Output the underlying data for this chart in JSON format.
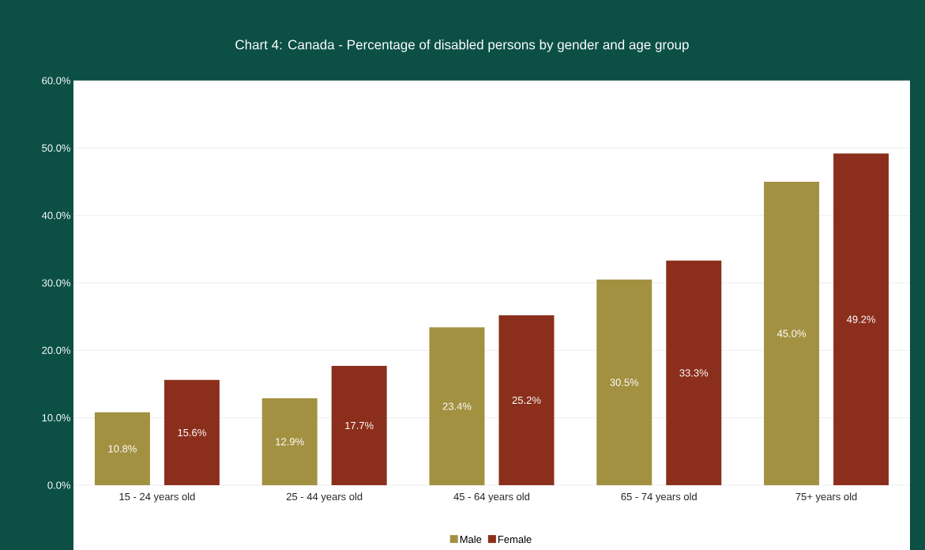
{
  "chart_data": {
    "type": "bar",
    "title": "Chart 4: Canada - Percentage of disabled persons by gender and age group",
    "categories": [
      "15 - 24 years old",
      "25 - 44 years old",
      "45 - 64 years old",
      "65 - 74 years old",
      "75+ years old"
    ],
    "series": [
      {
        "name": "Male",
        "color": "#a39142",
        "values": [
          10.8,
          12.9,
          23.4,
          30.5,
          45.0
        ],
        "value_labels": [
          "10.8%",
          "12.9%",
          "23.4%",
          "30.5%",
          "45.0%"
        ]
      },
      {
        "name": "Female",
        "color": "#8b2f1c",
        "values": [
          15.6,
          17.7,
          25.2,
          33.3,
          49.2
        ],
        "value_labels": [
          "15.6%",
          "17.7%",
          "25.2%",
          "33.3%",
          "49.2%"
        ]
      }
    ],
    "ylim": [
      0,
      60
    ],
    "yticks": [
      {
        "value": 0,
        "label": "0.0%"
      },
      {
        "value": 10,
        "label": "10.0%"
      },
      {
        "value": 20,
        "label": "20.0%"
      },
      {
        "value": 30,
        "label": "30.0%"
      },
      {
        "value": 40,
        "label": "40.0%"
      },
      {
        "value": 50,
        "label": "50.0%"
      },
      {
        "value": 60,
        "label": "60.0%"
      }
    ],
    "grid": "y",
    "legend": "bottom"
  }
}
